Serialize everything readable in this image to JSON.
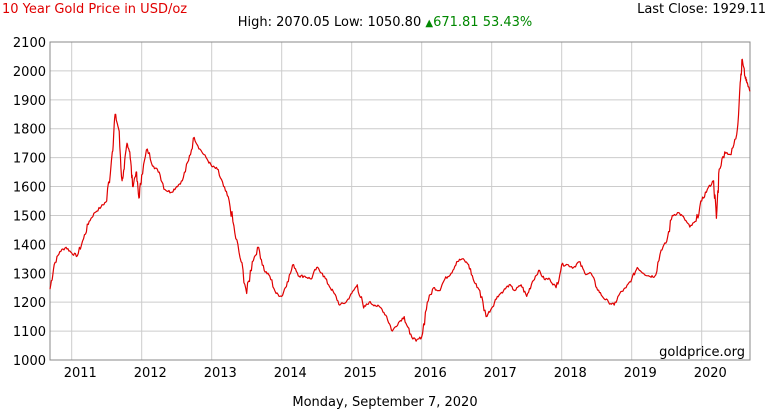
{
  "header": {
    "title": "10 Year Gold Price in USD/oz",
    "last_close_label": "Last Close:",
    "last_close_value": "1929.11",
    "high_label": "High:",
    "high_value": "2070.05",
    "low_label": "Low:",
    "low_value": "1050.80",
    "change_value": "671.81",
    "change_pct": "53.43%"
  },
  "footer": {
    "date": "Monday, September 7, 2020"
  },
  "watermark": "goldprice.org",
  "colors": {
    "title": "#e00000",
    "line": "#e00000",
    "change": "#008800",
    "grid": "#cccccc"
  },
  "chart_data": {
    "type": "line",
    "title": "10 Year Gold Price in USD/oz",
    "xlabel": "",
    "ylabel": "",
    "xlim": [
      2010.69,
      2020.69
    ],
    "ylim": [
      1000,
      2100
    ],
    "y_ticks": [
      1000,
      1100,
      1200,
      1300,
      1400,
      1500,
      1600,
      1700,
      1800,
      1900,
      2000,
      2100
    ],
    "x_tick_labels": [
      "2011",
      "2012",
      "2013",
      "2014",
      "2015",
      "2016",
      "2017",
      "2018",
      "2019",
      "2020"
    ],
    "grid": true,
    "legend": "none",
    "series": [
      {
        "x": [
          2010.69,
          2010.75,
          2010.83,
          2010.92,
          2011.0,
          2011.08,
          2011.17,
          2011.25,
          2011.33,
          2011.42,
          2011.5,
          2011.58,
          2011.62,
          2011.67,
          2011.72,
          2011.75,
          2011.79,
          2011.83,
          2011.87,
          2011.92,
          2011.96,
          2012.0,
          2012.08,
          2012.17,
          2012.25,
          2012.33,
          2012.42,
          2012.5,
          2012.58,
          2012.67,
          2012.75,
          2012.83,
          2012.92,
          2013.0,
          2013.08,
          2013.17,
          2013.25,
          2013.33,
          2013.42,
          2013.5,
          2013.58,
          2013.67,
          2013.75,
          2013.83,
          2013.92,
          2014.0,
          2014.08,
          2014.17,
          2014.25,
          2014.33,
          2014.42,
          2014.5,
          2014.58,
          2014.67,
          2014.75,
          2014.83,
          2014.92,
          2015.0,
          2015.08,
          2015.17,
          2015.25,
          2015.33,
          2015.42,
          2015.5,
          2015.58,
          2015.67,
          2015.75,
          2015.83,
          2015.92,
          2016.0,
          2016.08,
          2016.17,
          2016.25,
          2016.33,
          2016.42,
          2016.5,
          2016.58,
          2016.67,
          2016.75,
          2016.83,
          2016.92,
          2017.0,
          2017.08,
          2017.17,
          2017.25,
          2017.33,
          2017.42,
          2017.5,
          2017.58,
          2017.67,
          2017.75,
          2017.83,
          2017.92,
          2018.0,
          2018.08,
          2018.17,
          2018.25,
          2018.33,
          2018.42,
          2018.5,
          2018.58,
          2018.67,
          2018.75,
          2018.83,
          2018.92,
          2019.0,
          2019.08,
          2019.17,
          2019.25,
          2019.33,
          2019.42,
          2019.5,
          2019.58,
          2019.67,
          2019.75,
          2019.83,
          2019.92,
          2020.0,
          2020.08,
          2020.17,
          2020.21,
          2020.25,
          2020.33,
          2020.42,
          2020.5,
          2020.55,
          2020.58,
          2020.62,
          2020.65,
          2020.69
        ],
        "y": [
          1245,
          1330,
          1375,
          1390,
          1370,
          1360,
          1420,
          1480,
          1510,
          1530,
          1550,
          1720,
          1850,
          1800,
          1620,
          1660,
          1750,
          1720,
          1600,
          1650,
          1560,
          1640,
          1730,
          1670,
          1650,
          1590,
          1580,
          1600,
          1620,
          1690,
          1770,
          1730,
          1700,
          1670,
          1660,
          1600,
          1550,
          1440,
          1340,
          1230,
          1340,
          1390,
          1310,
          1290,
          1230,
          1220,
          1270,
          1330,
          1290,
          1290,
          1280,
          1320,
          1300,
          1260,
          1230,
          1190,
          1200,
          1230,
          1260,
          1180,
          1200,
          1190,
          1180,
          1150,
          1100,
          1130,
          1150,
          1090,
          1065,
          1080,
          1200,
          1250,
          1240,
          1280,
          1300,
          1340,
          1350,
          1330,
          1270,
          1240,
          1150,
          1180,
          1220,
          1240,
          1260,
          1240,
          1260,
          1220,
          1270,
          1310,
          1280,
          1280,
          1250,
          1330,
          1330,
          1320,
          1340,
          1300,
          1300,
          1250,
          1220,
          1200,
          1190,
          1230,
          1250,
          1280,
          1320,
          1300,
          1290,
          1290,
          1380,
          1410,
          1500,
          1510,
          1490,
          1460,
          1480,
          1550,
          1590,
          1620,
          1490,
          1660,
          1720,
          1710,
          1780,
          1960,
          2040,
          1980,
          1960,
          1929
        ]
      }
    ]
  }
}
